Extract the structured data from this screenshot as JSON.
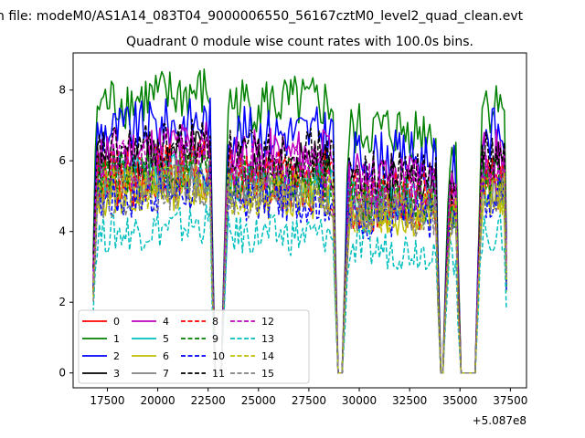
{
  "chart_data": {
    "type": "line",
    "suptitle": "n file: modeM0/AS1A14_083T04_9000006550_56167cztM0_level2_quad_clean.evt",
    "title": "Quadrant 0 module wise count rates with 100.0s bins.",
    "xlabel": "",
    "ylabel": "",
    "x_offset_label": "+5.087e8",
    "xlim": [
      15800,
      38300
    ],
    "ylim": [
      -0.42,
      9.05
    ],
    "x_ticks": [
      17500,
      20000,
      22500,
      25000,
      27500,
      30000,
      32500,
      35000,
      37500
    ],
    "x_tick_labels": [
      "17500",
      "20000",
      "22500",
      "25000",
      "27500",
      "30000",
      "32500",
      "35000",
      "37500"
    ],
    "y_ticks": [
      0,
      2,
      4,
      6,
      8
    ],
    "y_tick_labels": [
      "0",
      "2",
      "4",
      "6",
      "8"
    ],
    "bin_seconds": 100,
    "segments": [
      {
        "start": 16800,
        "end": 22700,
        "scale": 1.0
      },
      {
        "start": 23300,
        "end": 28800,
        "scale": 1.0
      },
      {
        "start": 29300,
        "end": 33900,
        "scale": 0.9
      },
      {
        "start": 34300,
        "end": 34900,
        "scale": 0.85
      },
      {
        "start": 35900,
        "end": 37300,
        "scale": 1.0
      }
    ],
    "gaps": [
      [
        22700,
        23300
      ],
      [
        28800,
        29300
      ],
      [
        33900,
        34300
      ],
      [
        34900,
        35900
      ]
    ],
    "legend_position": "lower-left",
    "series": [
      {
        "name": "0",
        "color": "#ff0000",
        "dash": "solid",
        "mean": 5.2
      },
      {
        "name": "1",
        "color": "#008000",
        "dash": "solid",
        "mean": 7.6
      },
      {
        "name": "2",
        "color": "#0000ff",
        "dash": "solid",
        "mean": 6.8
      },
      {
        "name": "3",
        "color": "#000000",
        "dash": "solid",
        "mean": 5.9
      },
      {
        "name": "4",
        "color": "#bf00bf",
        "dash": "solid",
        "mean": 6.2
      },
      {
        "name": "5",
        "color": "#00bfbf",
        "dash": "solid",
        "mean": 5.4
      },
      {
        "name": "6",
        "color": "#bfbf00",
        "dash": "solid",
        "mean": 5.0
      },
      {
        "name": "7",
        "color": "#808080",
        "dash": "solid",
        "mean": 5.3
      },
      {
        "name": "8",
        "color": "#ff0000",
        "dash": "dashed",
        "mean": 5.6
      },
      {
        "name": "9",
        "color": "#008000",
        "dash": "dashed",
        "mean": 5.5
      },
      {
        "name": "10",
        "color": "#0000ff",
        "dash": "dashed",
        "mean": 4.9
      },
      {
        "name": "11",
        "color": "#000000",
        "dash": "dashed",
        "mean": 6.2
      },
      {
        "name": "12",
        "color": "#bf00bf",
        "dash": "dashed",
        "mean": 5.8
      },
      {
        "name": "13",
        "color": "#00bfbf",
        "dash": "dashed",
        "mean": 3.9
      },
      {
        "name": "14",
        "color": "#bfbf00",
        "dash": "dashed",
        "mean": 5.1
      },
      {
        "name": "15",
        "color": "#808080",
        "dash": "dashed",
        "mean": 5.0
      }
    ]
  }
}
